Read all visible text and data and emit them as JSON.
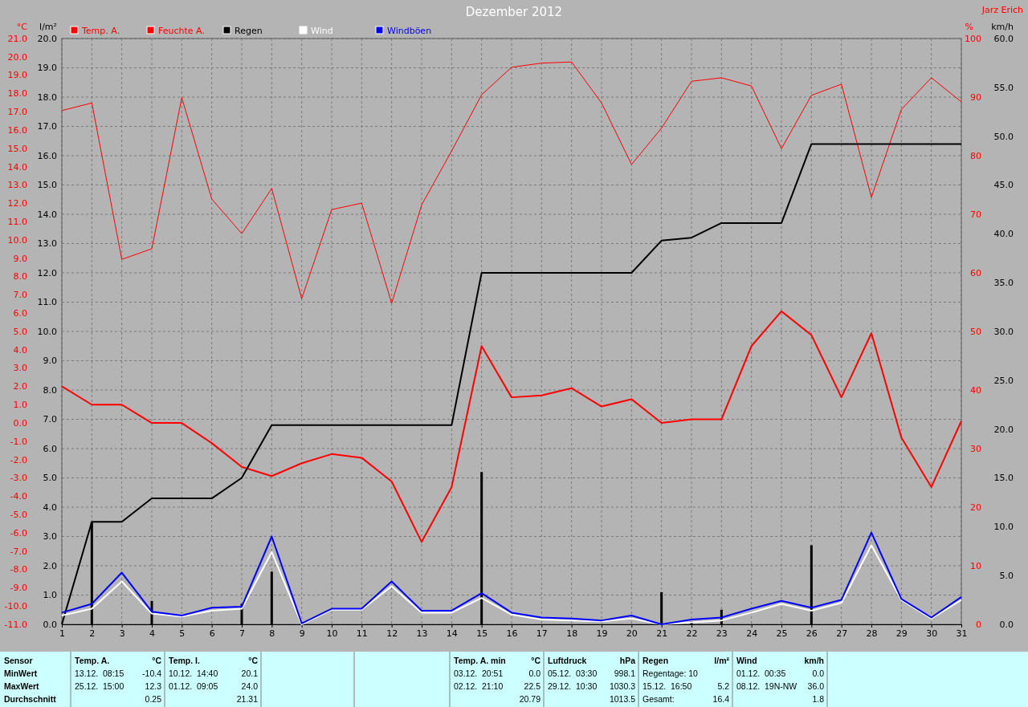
{
  "chart_data": [
    {
      "type": "line",
      "title": "Dezember 2012",
      "ylabel": "°C",
      "y2label": "l/m²",
      "y3label": "%",
      "x": [
        1,
        2,
        3,
        4,
        5,
        6,
        7,
        8,
        9,
        10,
        11,
        12,
        13,
        14,
        15,
        16,
        17,
        18,
        19,
        20,
        21,
        22,
        23,
        24,
        25,
        26,
        27,
        28,
        29,
        30,
        31
      ],
      "xlim": [
        1,
        31
      ],
      "xticks": [
        1,
        2,
        3,
        4,
        5,
        6,
        7,
        8,
        9,
        10,
        11,
        12,
        13,
        14,
        15,
        16,
        17,
        18,
        19,
        20,
        21,
        22,
        23,
        24,
        25,
        26,
        27,
        28,
        29,
        30,
        31
      ],
      "ylim": [
        -11,
        21
      ],
      "yticks": [
        {
          "value": -11,
          "label": "-11.0"
        },
        {
          "value": -10,
          "label": "-10.0"
        },
        {
          "value": -9,
          "label": "-9.0"
        },
        {
          "value": -8,
          "label": "-8.0"
        },
        {
          "value": -7,
          "label": "-7.0"
        },
        {
          "value": -6,
          "label": "-6.0"
        },
        {
          "value": -5,
          "label": "-5.0"
        },
        {
          "value": -4,
          "label": "-4.0"
        },
        {
          "value": -3,
          "label": "-3.0"
        },
        {
          "value": -2,
          "label": "-2.0"
        },
        {
          "value": -1,
          "label": "-1.0"
        },
        {
          "value": 0,
          "label": "0.0"
        },
        {
          "value": 1,
          "label": "1.0"
        },
        {
          "value": 2,
          "label": "2.0"
        },
        {
          "value": 3,
          "label": "3.0"
        },
        {
          "value": 4,
          "label": "4.0"
        },
        {
          "value": 5,
          "label": "5.0"
        },
        {
          "value": 6,
          "label": "6.0"
        },
        {
          "value": 7,
          "label": "7.0"
        },
        {
          "value": 8,
          "label": "8.0"
        },
        {
          "value": 9,
          "label": "9.0"
        },
        {
          "value": 10,
          "label": "10.0"
        },
        {
          "value": 11,
          "label": "11.0"
        },
        {
          "value": 12,
          "label": "12.0"
        },
        {
          "value": 13,
          "label": "13.0"
        },
        {
          "value": 14,
          "label": "14.0"
        },
        {
          "value": 15,
          "label": "15.0"
        },
        {
          "value": 16,
          "label": "16.0"
        },
        {
          "value": 17,
          "label": "17.0"
        },
        {
          "value": 18,
          "label": "18.0"
        },
        {
          "value": 19,
          "label": "19.0"
        },
        {
          "value": 20,
          "label": "20.0"
        },
        {
          "value": 21,
          "label": "21.0"
        }
      ],
      "y2lim": [
        0,
        20
      ],
      "y2ticks": [
        {
          "value": 0,
          "label": "0.0"
        },
        {
          "value": 1,
          "label": "1.0"
        },
        {
          "value": 2,
          "label": "2.0"
        },
        {
          "value": 3,
          "label": "3.0"
        },
        {
          "value": 4,
          "label": "4.0"
        },
        {
          "value": 5,
          "label": "5.0"
        },
        {
          "value": 6,
          "label": "6.0"
        },
        {
          "value": 7,
          "label": "7.0"
        },
        {
          "value": 8,
          "label": "8.0"
        },
        {
          "value": 9,
          "label": "9.0"
        },
        {
          "value": 10,
          "label": "10.0"
        },
        {
          "value": 11,
          "label": "11.0"
        },
        {
          "value": 12,
          "label": "12.0"
        },
        {
          "value": 13,
          "label": "13.0"
        },
        {
          "value": 14,
          "label": "14.0"
        },
        {
          "value": 15,
          "label": "15.0"
        },
        {
          "value": 16,
          "label": "16.0"
        },
        {
          "value": 17,
          "label": "17.0"
        },
        {
          "value": 18,
          "label": "18.0"
        },
        {
          "value": 19,
          "label": "19.0"
        },
        {
          "value": 20,
          "label": "20.0"
        }
      ],
      "y3lim": [
        0,
        100
      ],
      "y3ticks": [
        0,
        10,
        20,
        30,
        40,
        50,
        60,
        70,
        80,
        90,
        100
      ],
      "grid": true,
      "legend": "top left",
      "marker": "none",
      "line_style": "solid",
      "series": [
        {
          "type": "bar",
          "axis": "y2",
          "color": "#000000",
          "values": [
            null,
            3.5,
            null,
            0.8,
            null,
            null,
            0.7,
            1.8,
            null,
            null,
            null,
            null,
            null,
            null,
            5.2,
            null,
            null,
            null,
            null,
            null,
            1.1,
            0.1,
            0.5,
            null,
            null,
            2.7,
            null,
            null,
            null,
            null,
            null
          ]
        },
        {
          "name": "Temp. A.",
          "color": "#ff0000",
          "values": [
            2.0,
            1.0,
            1.0,
            0.0,
            0.0,
            -1.1,
            -2.4,
            -2.9,
            -2.2,
            -1.7,
            -1.9,
            -3.2,
            -6.5,
            -3.5,
            4.2,
            1.4,
            1.5,
            1.9,
            0.9,
            1.3,
            0.0,
            0.2,
            0.2,
            4.2,
            6.1,
            4.8,
            1.4,
            4.9,
            -0.8,
            -3.5,
            0.1
          ]
        },
        {
          "name": "Feuchte A.",
          "axis": "y3",
          "color": "#ff0000",
          "values": [
            87.7,
            89.0,
            62.3,
            64.1,
            89.9,
            72.6,
            66.7,
            74.4,
            55.6,
            70.8,
            71.9,
            54.8,
            71.6,
            80.8,
            90.4,
            95.1,
            95.8,
            96.0,
            89.0,
            78.5,
            84.7,
            92.7,
            93.3,
            91.9,
            81.2,
            90.3,
            92.2,
            72.9,
            87.9,
            93.3,
            89.2
          ]
        },
        {
          "name": "Regen",
          "axis": "y2",
          "color": "#000000",
          "values": [
            0,
            3.5,
            3.5,
            4.3,
            4.3,
            4.3,
            5.0,
            6.8,
            6.8,
            6.8,
            6.8,
            6.8,
            6.8,
            6.8,
            12.0,
            12.0,
            12.0,
            12.0,
            12.0,
            12.0,
            13.1,
            13.2,
            13.7,
            13.7,
            13.7,
            16.4,
            16.4,
            16.4,
            16.4,
            16.4,
            16.4
          ]
        }
      ],
      "annotations": [
        "Sensor",
        "MinWert",
        "MaxWert",
        "Durchschnitt",
        "Temp. A.",
        "°C",
        "13.12.  08:15",
        "-10.4",
        "25.12.  15:00",
        "12.3",
        "0.25",
        "Temp. I.",
        "°C",
        "10.12.  14:40",
        "20.1",
        "01.12.  09:05",
        "24.0",
        "21.31",
        "Temp. A. min",
        "°C",
        "03.12.  20:51",
        "0.0",
        "02.12.  21:10",
        "22.5",
        "20.79",
        "Luftdruck",
        "hPa",
        "05.12.  03:30",
        "998.1",
        "29.12.  10:30",
        "1030.3",
        "1013.5",
        "Regen",
        "l/m²",
        "Regentage: 10",
        "15.12.  16:50",
        "5.2",
        "Gesamt:",
        "16.4",
        "Wind",
        "km/h",
        "01.12.  00:35",
        "0.0",
        "08.12.  19N-NW",
        "36.0",
        "1.8",
        "Jarz Erich"
      ]
    },
    {
      "type": "line",
      "ylabel": "km/h",
      "tick_labels": "y",
      "x": [
        1,
        2,
        3,
        4,
        5,
        6,
        7,
        8,
        9,
        10,
        11,
        12,
        13,
        14,
        15,
        16,
        17,
        18,
        19,
        20,
        21,
        22,
        23,
        24,
        25,
        26,
        27,
        28,
        29,
        30,
        31
      ],
      "xlim": [
        1,
        31
      ],
      "ylim": [
        0,
        60
      ],
      "yticks": [
        {
          "value": 0,
          "label": "0.0"
        },
        {
          "value": 5,
          "label": "5.0"
        },
        {
          "value": 10,
          "label": "10.0"
        },
        {
          "value": 15,
          "label": "15.0"
        },
        {
          "value": 20,
          "label": "20.0"
        },
        {
          "value": 25,
          "label": "25.0"
        },
        {
          "value": 30,
          "label": "30.0"
        },
        {
          "value": 35,
          "label": "35.0"
        },
        {
          "value": 40,
          "label": "40.0"
        },
        {
          "value": 45,
          "label": "45.0"
        },
        {
          "value": 50,
          "label": "50.0"
        },
        {
          "value": 55,
          "label": "55.0"
        },
        {
          "value": 60,
          "label": "60.0"
        }
      ],
      "legend": "top left",
      "marker": "none",
      "line_style": "solid",
      "series": [
        {
          "name": "Wind",
          "color": "#ffffff",
          "values": [
            0.9,
            1.6,
            4.4,
            1.1,
            0.8,
            1.4,
            1.6,
            7.4,
            0,
            1.5,
            1.5,
            3.9,
            1.2,
            1.2,
            2.7,
            1.0,
            0.5,
            0.4,
            0.3,
            0.6,
            0,
            0.2,
            0.4,
            1.2,
            2.1,
            1.4,
            2.2,
            8.1,
            2.5,
            0.6,
            2.5
          ]
        },
        {
          "name": "Windböen",
          "color": "#0000ff",
          "values": [
            1.2,
            2.1,
            5.3,
            1.3,
            0.9,
            1.7,
            1.8,
            9.0,
            0.1,
            1.6,
            1.6,
            4.4,
            1.4,
            1.4,
            3.2,
            1.2,
            0.7,
            0.6,
            0.4,
            0.9,
            0,
            0.5,
            0.7,
            1.6,
            2.4,
            1.7,
            2.5,
            9.4,
            2.6,
            0.7,
            2.8
          ]
        }
      ]
    }
  ]
}
